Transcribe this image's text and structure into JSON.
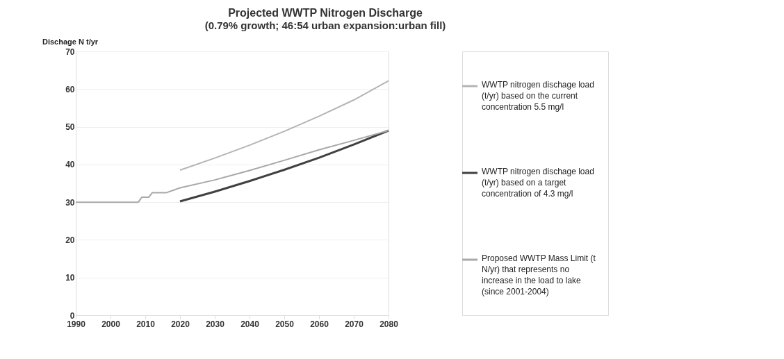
{
  "chart_data": {
    "type": "line",
    "title": "Projected WWTP  Nitrogen  Discharge",
    "subtitle": "(0.79% growth; 46:54 urban expansion:urban fill)",
    "ylabel": "Dischage N t/yr",
    "xlim": [
      1990,
      2080
    ],
    "xticks": [
      1990,
      2000,
      2010,
      2020,
      2030,
      2040,
      2050,
      2060,
      2070,
      2080
    ],
    "ylim": [
      0,
      70
    ],
    "yticks": [
      0,
      10,
      20,
      30,
      40,
      50,
      60,
      70
    ],
    "grid": "y",
    "legend": "right",
    "line_style": "solid",
    "marker": "none",
    "series": [
      {
        "name": "WWTP nitrogen dischage load (t/yr) based on the current concentration 5.5 mg/l",
        "color": "#b4b4b4",
        "x": [
          2020,
          2030,
          2040,
          2050,
          2060,
          2070,
          2080
        ],
        "values": [
          38.5,
          41.7,
          45.1,
          48.8,
          52.8,
          57.1,
          62.2
        ]
      },
      {
        "name": "WWTP nitrogen dischage load (t/yr) based on a target concentration of 4.3 mg/l",
        "color": "#404040",
        "x": [
          2020,
          2030,
          2040,
          2050,
          2060,
          2070,
          2080
        ],
        "values": [
          30.2,
          32.8,
          35.6,
          38.6,
          41.8,
          45.3,
          49.0
        ]
      },
      {
        "name": "Proposed WWTP Mass Limit (t N/yr) that represents no increase in the load to lake (since 2001-2004)",
        "color": "#a8a8a8",
        "x": [
          1990,
          2008,
          2009,
          2011,
          2012,
          2016,
          2020,
          2030,
          2040,
          2050,
          2060,
          2070,
          2080
        ],
        "values": [
          30,
          30,
          31.3,
          31.3,
          32.5,
          32.5,
          33.8,
          35.9,
          38.4,
          41.1,
          43.9,
          46.4,
          49.0
        ]
      }
    ]
  }
}
